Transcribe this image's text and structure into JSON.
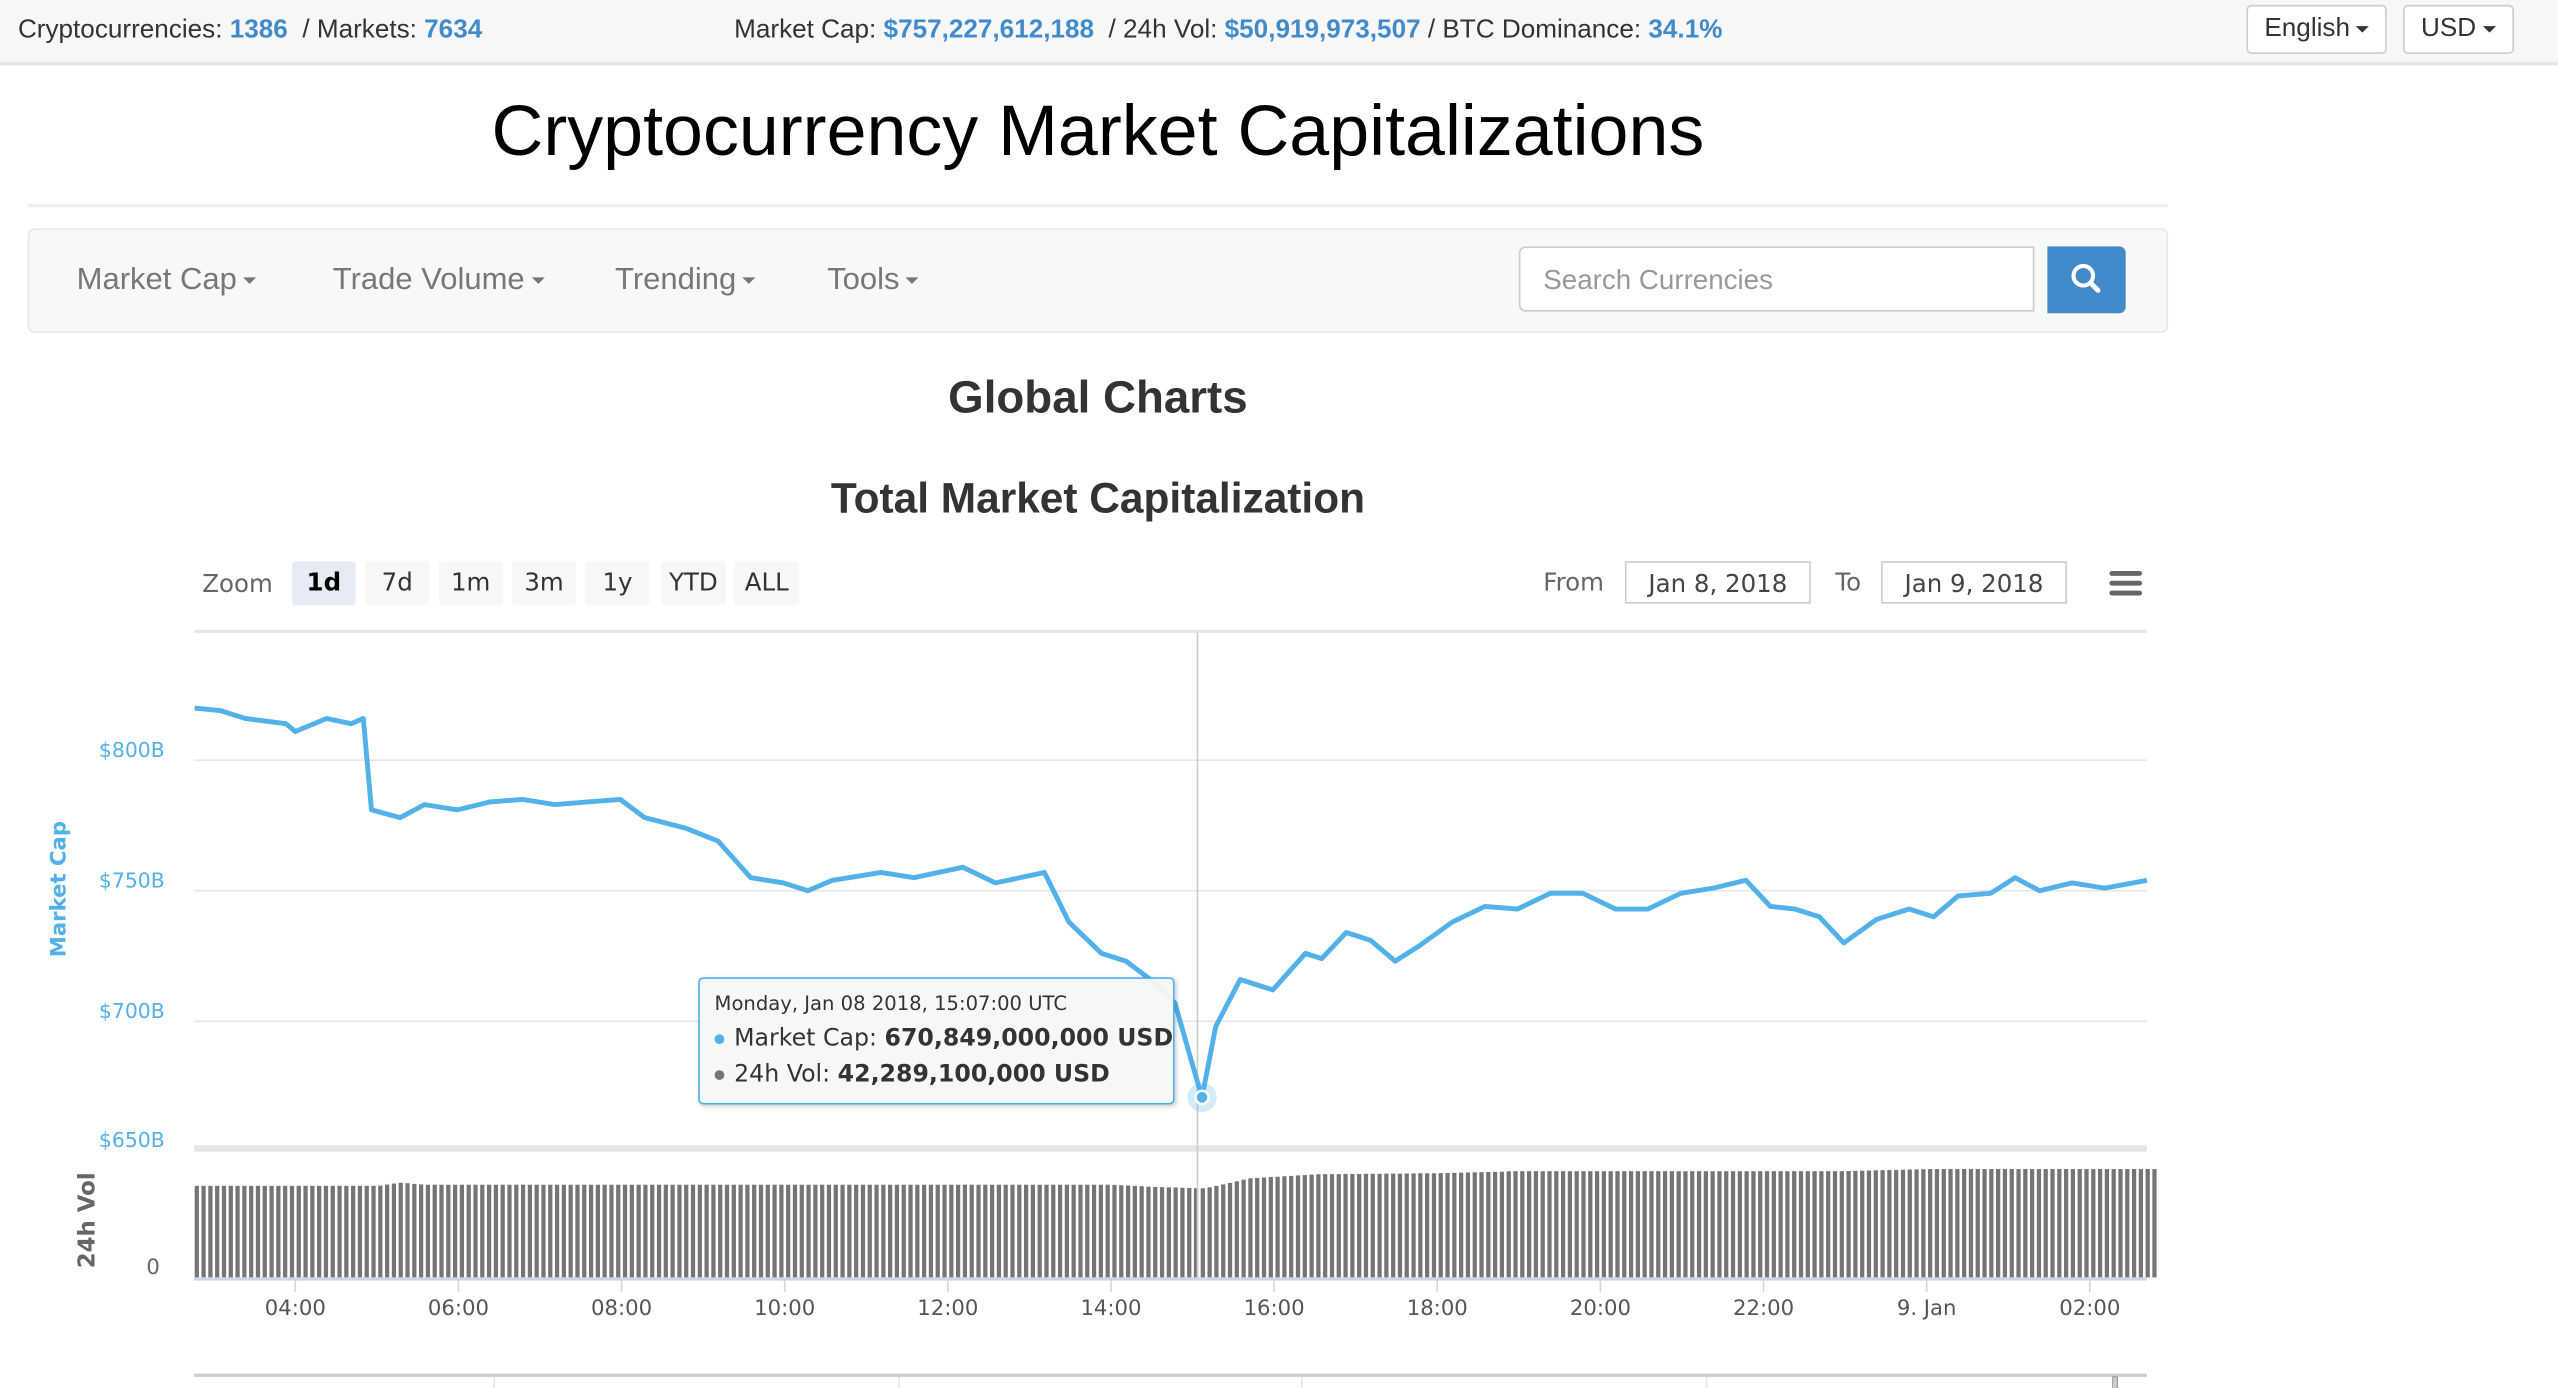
{
  "topbar": {
    "cryptos_label": "Cryptocurrencies:",
    "cryptos_value": "1386",
    "markets_label": "/ Markets:",
    "markets_value": "7634",
    "mcap_label": "Market Cap:",
    "mcap_value": "$757,227,612,188",
    "vol_label": "/ 24h Vol:",
    "vol_value": "$50,919,973,507",
    "dom_label": "/ BTC Dominance:",
    "dom_value": "34.1%",
    "language": "English",
    "currency": "USD"
  },
  "page_title": "Cryptocurrency Market Capitalizations",
  "nav": {
    "items": [
      {
        "label": "Market Cap"
      },
      {
        "label": "Trade Volume"
      },
      {
        "label": "Trending"
      },
      {
        "label": "Tools"
      }
    ],
    "search_placeholder": "Search Currencies",
    "search_icon": "search-icon"
  },
  "section_title": "Global Charts",
  "chart_title": "Total Market Capitalization",
  "range_selector": {
    "zoom_label": "Zoom",
    "buttons": [
      "1d",
      "7d",
      "1m",
      "3m",
      "1y",
      "YTD",
      "ALL"
    ],
    "selected": "1d",
    "from_label": "From",
    "from_value": "Jan 8, 2018",
    "to_label": "To",
    "to_value": "Jan 9, 2018",
    "menu_icon": "hamburger-menu-icon"
  },
  "tooltip": {
    "date": "Monday, Jan 08 2018, 15:07:00 UTC",
    "mcap_label": "Market Cap:",
    "mcap_value": "670,849,000,000 USD",
    "vol_label": "24h Vol:",
    "vol_value": "42,289,100,000 USD"
  },
  "colors": {
    "accent": "#428bca",
    "series_mcap": "#52b1e8",
    "series_vol": "#757575"
  },
  "chart_data": {
    "type": "line",
    "xlabel": "",
    "x_tick_labels": [
      "04:00",
      "06:00",
      "08:00",
      "10:00",
      "12:00",
      "14:00",
      "16:00",
      "18:00",
      "20:00",
      "22:00",
      "9. Jan",
      "02:00"
    ],
    "y_axes": [
      {
        "label": "Market Cap",
        "tick_labels": [
          "$650B",
          "$700B",
          "$750B",
          "$800B"
        ],
        "ticks": [
          650,
          700,
          750,
          800
        ],
        "unit": "B USD"
      },
      {
        "label": "24h Vol",
        "tick_labels": [
          "0"
        ],
        "ticks": [
          0
        ],
        "unit": "B USD"
      }
    ],
    "grid": true,
    "series": [
      {
        "name": "Market Cap",
        "type": "line",
        "points": [
          [
            "2018-01-08T02:46",
            820
          ],
          [
            "2018-01-08T03:05",
            819
          ],
          [
            "2018-01-08T03:23",
            816
          ],
          [
            "2018-01-08T03:53",
            814
          ],
          [
            "2018-01-08T04:00",
            811
          ],
          [
            "2018-01-08T04:23",
            816
          ],
          [
            "2018-01-08T04:41",
            814
          ],
          [
            "2018-01-08T04:50",
            816
          ],
          [
            "2018-01-08T04:56",
            781
          ],
          [
            "2018-01-08T05:17",
            778
          ],
          [
            "2018-01-08T05:35",
            783
          ],
          [
            "2018-01-08T05:59",
            781
          ],
          [
            "2018-01-08T06:23",
            784
          ],
          [
            "2018-01-08T06:47",
            785
          ],
          [
            "2018-01-08T07:11",
            783
          ],
          [
            "2018-01-08T07:35",
            784
          ],
          [
            "2018-01-08T07:59",
            785
          ],
          [
            "2018-01-08T08:17",
            778
          ],
          [
            "2018-01-08T08:47",
            774
          ],
          [
            "2018-01-08T09:11",
            769
          ],
          [
            "2018-01-08T09:35",
            755
          ],
          [
            "2018-01-08T09:59",
            753
          ],
          [
            "2018-01-08T10:17",
            750
          ],
          [
            "2018-01-08T10:35",
            754
          ],
          [
            "2018-01-08T11:11",
            757
          ],
          [
            "2018-01-08T11:35",
            755
          ],
          [
            "2018-01-08T12:11",
            759
          ],
          [
            "2018-01-08T12:35",
            753
          ],
          [
            "2018-01-08T13:11",
            757
          ],
          [
            "2018-01-08T13:29",
            738
          ],
          [
            "2018-01-08T13:53",
            726
          ],
          [
            "2018-01-08T14:11",
            723
          ],
          [
            "2018-01-08T14:29",
            716
          ],
          [
            "2018-01-08T14:47",
            707
          ],
          [
            "2018-01-08T14:59",
            685
          ],
          [
            "2018-01-08T15:07",
            670.849
          ],
          [
            "2018-01-08T15:17",
            698
          ],
          [
            "2018-01-08T15:35",
            716
          ],
          [
            "2018-01-08T15:59",
            712
          ],
          [
            "2018-01-08T16:23",
            726
          ],
          [
            "2018-01-08T16:35",
            724
          ],
          [
            "2018-01-08T16:53",
            734
          ],
          [
            "2018-01-08T17:11",
            731
          ],
          [
            "2018-01-08T17:29",
            723
          ],
          [
            "2018-01-08T17:47",
            729
          ],
          [
            "2018-01-08T18:11",
            738
          ],
          [
            "2018-01-08T18:35",
            744
          ],
          [
            "2018-01-08T18:59",
            743
          ],
          [
            "2018-01-08T19:23",
            749
          ],
          [
            "2018-01-08T19:47",
            749
          ],
          [
            "2018-01-08T20:11",
            743
          ],
          [
            "2018-01-08T20:35",
            743
          ],
          [
            "2018-01-08T20:59",
            749
          ],
          [
            "2018-01-08T21:23",
            751
          ],
          [
            "2018-01-08T21:47",
            754
          ],
          [
            "2018-01-08T22:05",
            744
          ],
          [
            "2018-01-08T22:23",
            743
          ],
          [
            "2018-01-08T22:41",
            740
          ],
          [
            "2018-01-08T22:59",
            730
          ],
          [
            "2018-01-08T23:23",
            739
          ],
          [
            "2018-01-08T23:47",
            743
          ],
          [
            "2018-01-09T00:05",
            740
          ],
          [
            "2018-01-09T00:23",
            748
          ],
          [
            "2018-01-09T00:47",
            749
          ],
          [
            "2018-01-09T01:05",
            755
          ],
          [
            "2018-01-09T01:23",
            750
          ],
          [
            "2018-01-09T01:47",
            753
          ],
          [
            "2018-01-09T02:11",
            751
          ],
          [
            "2018-01-09T02:42",
            754
          ]
        ]
      },
      {
        "name": "24h Vol",
        "type": "column",
        "points": [
          [
            "2018-01-08T02:46",
            43.5
          ],
          [
            "2018-01-08T05:00",
            43.5
          ],
          [
            "2018-01-08T05:15",
            45
          ],
          [
            "2018-01-08T05:35",
            44
          ],
          [
            "2018-01-08T14:00",
            44
          ],
          [
            "2018-01-08T14:30",
            43
          ],
          [
            "2018-01-08T15:07",
            42.289
          ],
          [
            "2018-01-08T15:20",
            44
          ],
          [
            "2018-01-08T15:40",
            47
          ],
          [
            "2018-01-08T16:30",
            49
          ],
          [
            "2018-01-08T18:00",
            49.5
          ],
          [
            "2018-01-08T19:00",
            50.5
          ],
          [
            "2018-01-08T23:00",
            50.5
          ],
          [
            "2018-01-09T00:00",
            51.5
          ],
          [
            "2018-01-09T02:49",
            51.5
          ]
        ]
      }
    ]
  }
}
